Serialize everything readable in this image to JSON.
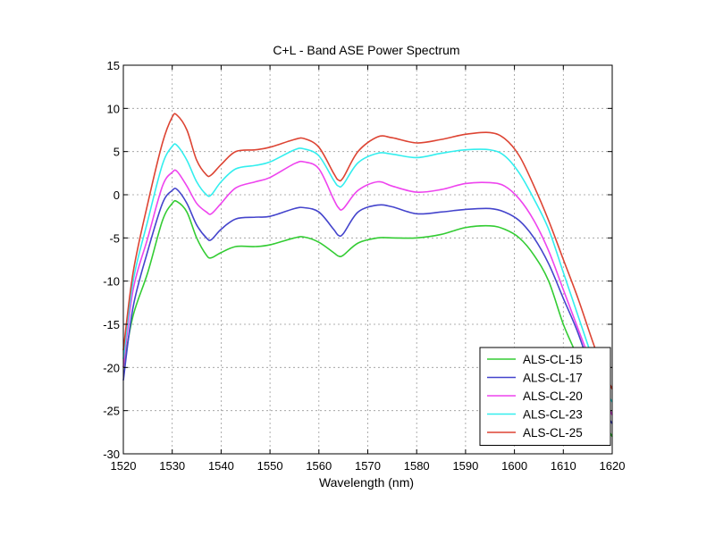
{
  "chart_data": {
    "type": "line",
    "title": "C+L - Band ASE Power Spectrum",
    "xlabel": "Wavelength (nm)",
    "ylabel": "",
    "xlim": [
      1520,
      1620
    ],
    "ylim": [
      -30,
      15
    ],
    "xticks": [
      1520,
      1530,
      1540,
      1550,
      1560,
      1570,
      1580,
      1590,
      1600,
      1610,
      1620
    ],
    "yticks": [
      15,
      10,
      5,
      0,
      -5,
      -10,
      -15,
      -20,
      -25,
      -30
    ],
    "grid": true,
    "legend_position": "bottom-right",
    "series": [
      {
        "name": "ALS-CL-15",
        "color": "#33cc33",
        "points": [
          [
            1520,
            -20
          ],
          [
            1522,
            -14
          ],
          [
            1525,
            -9
          ],
          [
            1528,
            -3
          ],
          [
            1530,
            -1
          ],
          [
            1531,
            -0.8
          ],
          [
            1533,
            -2
          ],
          [
            1535,
            -5
          ],
          [
            1537,
            -7
          ],
          [
            1538,
            -7.3
          ],
          [
            1540,
            -6.7
          ],
          [
            1543,
            -6
          ],
          [
            1547,
            -6
          ],
          [
            1550,
            -5.8
          ],
          [
            1555,
            -5
          ],
          [
            1557,
            -4.9
          ],
          [
            1560,
            -5.5
          ],
          [
            1563,
            -6.7
          ],
          [
            1564,
            -7.1
          ],
          [
            1565,
            -7
          ],
          [
            1568,
            -5.6
          ],
          [
            1572,
            -5
          ],
          [
            1575,
            -5
          ],
          [
            1580,
            -5
          ],
          [
            1585,
            -4.6
          ],
          [
            1590,
            -3.8
          ],
          [
            1595,
            -3.6
          ],
          [
            1598,
            -4
          ],
          [
            1601,
            -5
          ],
          [
            1604,
            -7
          ],
          [
            1607,
            -10
          ],
          [
            1610,
            -15
          ],
          [
            1613,
            -19
          ],
          [
            1616,
            -24
          ],
          [
            1618,
            -26
          ],
          [
            1620,
            -28
          ]
        ]
      },
      {
        "name": "ALS-CL-17",
        "color": "#4444cc",
        "points": [
          [
            1520,
            -21.5
          ],
          [
            1522,
            -13
          ],
          [
            1525,
            -6.5
          ],
          [
            1528,
            -1
          ],
          [
            1530,
            0.5
          ],
          [
            1531,
            0.6
          ],
          [
            1533,
            -1
          ],
          [
            1535,
            -3.5
          ],
          [
            1537,
            -5
          ],
          [
            1538,
            -5.2
          ],
          [
            1540,
            -4
          ],
          [
            1543,
            -2.8
          ],
          [
            1547,
            -2.6
          ],
          [
            1550,
            -2.5
          ],
          [
            1555,
            -1.6
          ],
          [
            1557,
            -1.5
          ],
          [
            1560,
            -2
          ],
          [
            1563,
            -4
          ],
          [
            1564,
            -4.7
          ],
          [
            1565,
            -4.5
          ],
          [
            1568,
            -2
          ],
          [
            1572,
            -1.2
          ],
          [
            1575,
            -1.4
          ],
          [
            1580,
            -2.2
          ],
          [
            1585,
            -2
          ],
          [
            1590,
            -1.7
          ],
          [
            1595,
            -1.6
          ],
          [
            1598,
            -2
          ],
          [
            1601,
            -3
          ],
          [
            1604,
            -5
          ],
          [
            1607,
            -8
          ],
          [
            1610,
            -12
          ],
          [
            1613,
            -16
          ],
          [
            1616,
            -21
          ],
          [
            1618,
            -24.5
          ],
          [
            1620,
            -26.5
          ]
        ]
      },
      {
        "name": "ALS-CL-20",
        "color": "#ee44ee",
        "points": [
          [
            1520,
            -20
          ],
          [
            1522,
            -11
          ],
          [
            1525,
            -5
          ],
          [
            1528,
            1
          ],
          [
            1530,
            2.6
          ],
          [
            1531,
            2.7
          ],
          [
            1533,
            1
          ],
          [
            1535,
            -1
          ],
          [
            1537,
            -2
          ],
          [
            1538,
            -2.2
          ],
          [
            1540,
            -1
          ],
          [
            1543,
            0.8
          ],
          [
            1547,
            1.5
          ],
          [
            1550,
            2
          ],
          [
            1555,
            3.6
          ],
          [
            1557,
            3.8
          ],
          [
            1560,
            3
          ],
          [
            1563,
            -0.5
          ],
          [
            1564,
            -1.5
          ],
          [
            1565,
            -1.6
          ],
          [
            1568,
            0.5
          ],
          [
            1572,
            1.5
          ],
          [
            1575,
            1
          ],
          [
            1580,
            0.3
          ],
          [
            1585,
            0.6
          ],
          [
            1590,
            1.3
          ],
          [
            1595,
            1.4
          ],
          [
            1598,
            1
          ],
          [
            1601,
            -0.5
          ],
          [
            1604,
            -3
          ],
          [
            1607,
            -6.5
          ],
          [
            1610,
            -11
          ],
          [
            1613,
            -15.5
          ],
          [
            1616,
            -20
          ],
          [
            1618,
            -23
          ],
          [
            1620,
            -25.5
          ]
        ]
      },
      {
        "name": "ALS-CL-23",
        "color": "#33eeee",
        "points": [
          [
            1520,
            -19
          ],
          [
            1522,
            -10
          ],
          [
            1525,
            -3
          ],
          [
            1528,
            3.5
          ],
          [
            1530,
            5.6
          ],
          [
            1531,
            5.7
          ],
          [
            1533,
            4
          ],
          [
            1535,
            1.5
          ],
          [
            1537,
            0
          ],
          [
            1538,
            0
          ],
          [
            1540,
            1.5
          ],
          [
            1543,
            3
          ],
          [
            1547,
            3.4
          ],
          [
            1550,
            3.8
          ],
          [
            1555,
            5.2
          ],
          [
            1557,
            5.3
          ],
          [
            1560,
            4.5
          ],
          [
            1563,
            1.7
          ],
          [
            1564,
            1
          ],
          [
            1565,
            1.2
          ],
          [
            1568,
            3.7
          ],
          [
            1572,
            4.8
          ],
          [
            1575,
            4.7
          ],
          [
            1580,
            4.3
          ],
          [
            1585,
            4.8
          ],
          [
            1590,
            5.2
          ],
          [
            1595,
            5.2
          ],
          [
            1598,
            4.5
          ],
          [
            1601,
            2.5
          ],
          [
            1604,
            -0.5
          ],
          [
            1607,
            -4
          ],
          [
            1610,
            -9
          ],
          [
            1613,
            -14
          ],
          [
            1616,
            -19
          ],
          [
            1618,
            -22
          ],
          [
            1620,
            -24
          ]
        ]
      },
      {
        "name": "ALS-CL-25",
        "color": "#dd4433",
        "points": [
          [
            1520,
            -18
          ],
          [
            1522,
            -9
          ],
          [
            1525,
            -1
          ],
          [
            1528,
            6
          ],
          [
            1530,
            9
          ],
          [
            1531,
            9.2
          ],
          [
            1533,
            7.5
          ],
          [
            1535,
            4
          ],
          [
            1537,
            2.3
          ],
          [
            1538,
            2.3
          ],
          [
            1540,
            3.5
          ],
          [
            1543,
            5
          ],
          [
            1547,
            5.2
          ],
          [
            1550,
            5.5
          ],
          [
            1555,
            6.4
          ],
          [
            1557,
            6.5
          ],
          [
            1560,
            5.5
          ],
          [
            1563,
            2.5
          ],
          [
            1564,
            1.7
          ],
          [
            1565,
            2
          ],
          [
            1568,
            5
          ],
          [
            1572,
            6.7
          ],
          [
            1575,
            6.6
          ],
          [
            1580,
            6
          ],
          [
            1585,
            6.4
          ],
          [
            1590,
            7
          ],
          [
            1595,
            7.2
          ],
          [
            1598,
            6.5
          ],
          [
            1601,
            4.5
          ],
          [
            1604,
            1
          ],
          [
            1607,
            -3
          ],
          [
            1610,
            -7.5
          ],
          [
            1613,
            -12
          ],
          [
            1616,
            -17
          ],
          [
            1618,
            -20
          ],
          [
            1620,
            -22.5
          ]
        ]
      }
    ]
  }
}
